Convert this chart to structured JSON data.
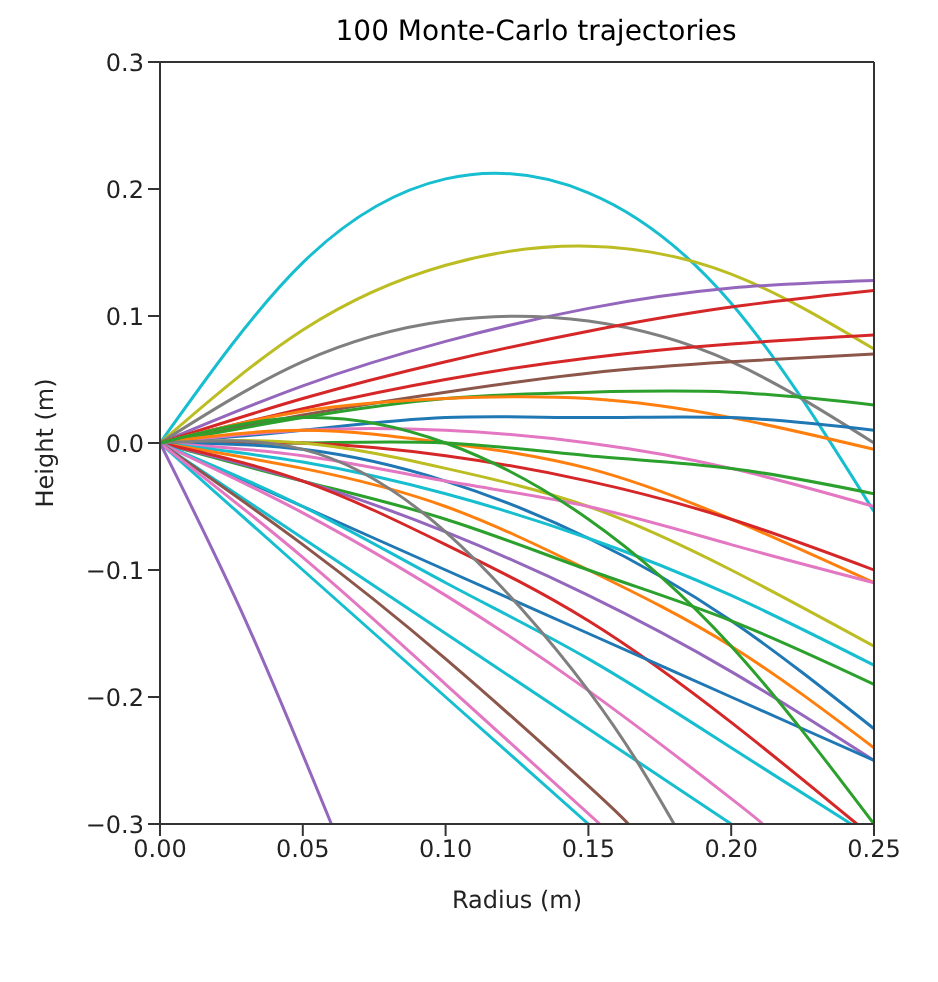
{
  "chart_data": {
    "type": "line",
    "title": "100 Monte-Carlo trajectories",
    "xlabel": "Radius (m)",
    "ylabel": "Height (m)",
    "xlim": [
      0,
      0.25
    ],
    "ylim": [
      -0.3,
      0.3
    ],
    "xticks": [
      {
        "value": 0,
        "label": "0.00"
      },
      {
        "value": 0.05,
        "label": "0.05"
      },
      {
        "value": 0.1,
        "label": "0.10"
      },
      {
        "value": 0.15,
        "label": "0.15"
      },
      {
        "value": 0.2,
        "label": "0.20"
      },
      {
        "value": 0.25,
        "label": "0.25"
      }
    ],
    "yticks": [
      {
        "value": -0.3,
        "label": "−0.3"
      },
      {
        "value": -0.2,
        "label": "−0.2"
      },
      {
        "value": -0.1,
        "label": "−0.1"
      },
      {
        "value": 0,
        "label": "0.0"
      },
      {
        "value": 0.1,
        "label": "0.1"
      },
      {
        "value": 0.2,
        "label": "0.2"
      },
      {
        "value": 0.3,
        "label": "0.3"
      }
    ],
    "x": [
      0,
      0.05,
      0.1,
      0.15,
      0.2,
      0.25
    ],
    "series": [
      {
        "color": "#17becf",
        "values": [
          0,
          0.142,
          0.208,
          0.197,
          0.11,
          -0.054
        ]
      },
      {
        "color": "#bcbd22",
        "values": [
          0,
          0.089,
          0.14,
          0.155,
          0.133,
          0.074
        ]
      },
      {
        "color": "#9467bd",
        "values": [
          0,
          0.045,
          0.08,
          0.106,
          0.122,
          0.128
        ]
      },
      {
        "color": "#7f7f7f",
        "values": [
          0,
          0.064,
          0.096,
          0.096,
          0.064,
          0
        ]
      },
      {
        "color": "#d62728",
        "values": [
          0,
          0.035,
          0.064,
          0.088,
          0.107,
          0.12
        ]
      },
      {
        "color": "#d62728",
        "values": [
          0,
          0.027,
          0.05,
          0.067,
          0.078,
          0.085
        ]
      },
      {
        "color": "#8c564b",
        "values": [
          0,
          0.022,
          0.04,
          0.055,
          0.064,
          0.07
        ]
      },
      {
        "color": "#2ca02c",
        "values": [
          0,
          0.02,
          0.035,
          0.04,
          0.04,
          0.03
        ]
      },
      {
        "color": "#ff7f0e",
        "values": [
          0,
          0.025,
          0.035,
          0.035,
          0.02,
          -0.005
        ]
      },
      {
        "color": "#1f77b4",
        "values": [
          0,
          0.01,
          0.02,
          0.02,
          0.02,
          0.01
        ]
      },
      {
        "color": "#e377c2",
        "values": [
          0,
          0.01,
          0.01,
          0,
          -0.02,
          -0.05
        ]
      },
      {
        "color": "#ff7f0e",
        "values": [
          0,
          0.01,
          0,
          -0.02,
          -0.06,
          -0.11
        ]
      },
      {
        "color": "#2ca02c",
        "values": [
          0,
          0,
          0,
          -0.01,
          -0.02,
          -0.04
        ]
      },
      {
        "color": "#d62728",
        "values": [
          0,
          0,
          -0.01,
          -0.03,
          -0.06,
          -0.1
        ]
      },
      {
        "color": "#bcbd22",
        "values": [
          0,
          0,
          -0.02,
          -0.05,
          -0.1,
          -0.16
        ]
      },
      {
        "color": "#1f77b4",
        "values": [
          0,
          -0.005,
          -0.03,
          -0.075,
          -0.14,
          -0.225
        ]
      },
      {
        "color": "#e377c2",
        "values": [
          0,
          -0.01,
          -0.03,
          -0.05,
          -0.08,
          -0.11
        ]
      },
      {
        "color": "#17becf",
        "values": [
          0,
          -0.015,
          -0.04,
          -0.075,
          -0.12,
          -0.175
        ]
      },
      {
        "color": "#ff7f0e",
        "values": [
          0,
          -0.02,
          -0.05,
          -0.1,
          -0.16,
          -0.24
        ]
      },
      {
        "color": "#2ca02c",
        "values": [
          0,
          -0.03,
          -0.06,
          -0.1,
          -0.14,
          -0.19
        ]
      },
      {
        "color": "#9467bd",
        "values": [
          0,
          -0.03,
          -0.07,
          -0.12,
          -0.18,
          -0.25
        ]
      },
      {
        "color": "#d62728",
        "x": [
          0,
          0.05,
          0.1,
          0.15,
          0.2,
          0.244
        ],
        "values": [
          0,
          -0.03,
          -0.08,
          -0.14,
          -0.22,
          -0.3
        ]
      },
      {
        "color": "#1f77b4",
        "values": [
          0,
          -0.05,
          -0.1,
          -0.15,
          -0.2,
          -0.25
        ]
      },
      {
        "color": "#17becf",
        "x": [
          0,
          0.05,
          0.1,
          0.15,
          0.2,
          0.242
        ],
        "values": [
          0,
          -0.05,
          -0.11,
          -0.17,
          -0.24,
          -0.3
        ]
      },
      {
        "color": "#e377c2",
        "x": [
          0,
          0.05,
          0.1,
          0.15,
          0.2,
          0.211
        ],
        "values": [
          0,
          -0.055,
          -0.12,
          -0.195,
          -0.28,
          -0.3
        ]
      },
      {
        "color": "#17becf",
        "x": [
          0,
          0.05,
          0.1,
          0.15,
          0.2
        ],
        "values": [
          0,
          -0.075,
          -0.15,
          -0.225,
          -0.3
        ]
      },
      {
        "color": "#8c564b",
        "x": [
          0,
          0.05,
          0.1,
          0.15,
          0.164
        ],
        "values": [
          0,
          -0.08,
          -0.17,
          -0.27,
          -0.3
        ]
      },
      {
        "color": "#17becf",
        "x": [
          0,
          0.05,
          0.1,
          0.15
        ],
        "values": [
          0,
          -0.1,
          -0.2,
          -0.3
        ]
      },
      {
        "color": "#e377c2",
        "x": [
          0,
          0.05,
          0.1,
          0.154
        ],
        "values": [
          0,
          -0.09,
          -0.19,
          -0.3
        ]
      },
      {
        "color": "#9467bd",
        "x": [
          0,
          0.03,
          0.06
        ],
        "values": [
          0,
          -0.14,
          -0.3
        ]
      },
      {
        "color": "#7f7f7f",
        "x": [
          0,
          0.05,
          0.1,
          0.15,
          0.18
        ],
        "values": [
          0,
          -0.005,
          -0.07,
          -0.195,
          -0.3
        ]
      },
      {
        "color": "#2ca02c",
        "values": [
          0,
          0.02,
          0,
          -0.06,
          -0.16,
          -0.3
        ]
      }
    ]
  }
}
